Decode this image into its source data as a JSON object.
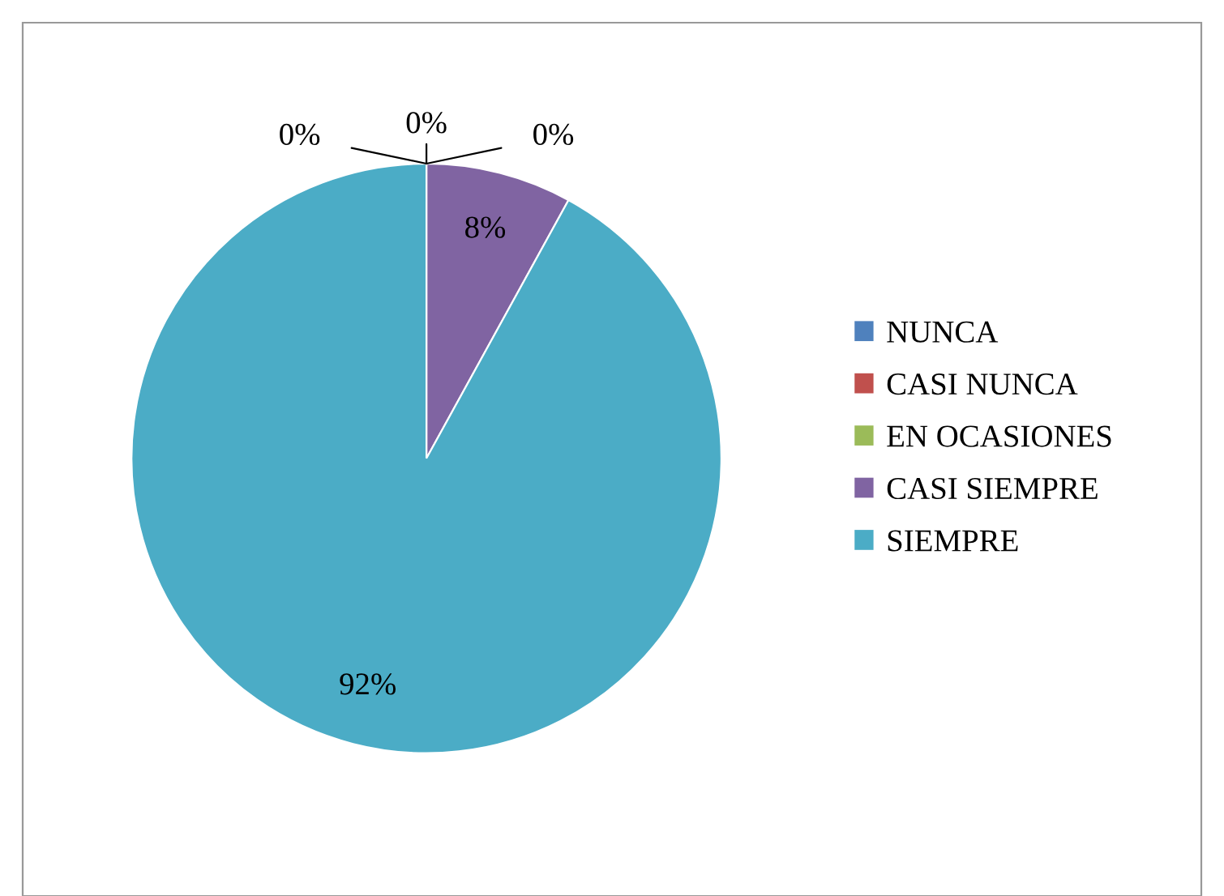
{
  "chart_data": {
    "type": "pie",
    "categories": [
      "NUNCA",
      "CASI NUNCA",
      "EN OCASIONES",
      "CASI SIEMPRE",
      "SIEMPRE"
    ],
    "values": [
      0,
      0,
      0,
      8,
      92
    ],
    "colors": [
      "#4f81bd",
      "#c0504d",
      "#9bbb59",
      "#8064a2",
      "#4bacc6"
    ],
    "value_labels": [
      "0%",
      "0%",
      "0%",
      "8%",
      "92%"
    ],
    "legend": "right"
  }
}
